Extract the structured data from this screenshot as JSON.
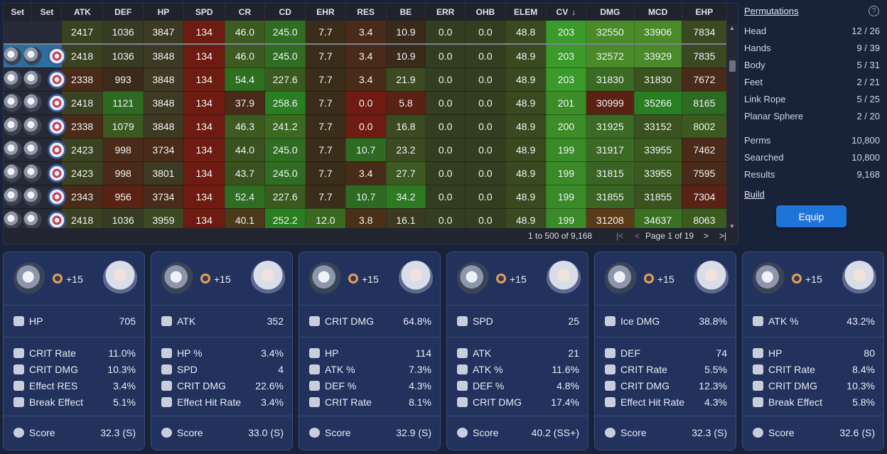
{
  "grid": {
    "columns": [
      "Set",
      "Set",
      "ATK",
      "DEF",
      "HP",
      "SPD",
      "CR",
      "CD",
      "EHR",
      "RES",
      "BE",
      "ERR",
      "OHB",
      "ELEM",
      "CV",
      "DMG",
      "MCD",
      "EHP"
    ],
    "sort_indicator": "↓",
    "rows": [
      [
        "2417",
        "1036",
        "3847",
        "134",
        "46.0",
        "245.0",
        "7.7",
        "3.4",
        "10.9",
        "0.0",
        "0.0",
        "48.8",
        "203",
        "32550",
        "33906",
        "7834"
      ],
      [
        "2418",
        "1036",
        "3848",
        "134",
        "46.0",
        "245.0",
        "7.7",
        "3.4",
        "10.9",
        "0.0",
        "0.0",
        "48.9",
        "203",
        "32572",
        "33929",
        "7835"
      ],
      [
        "2338",
        "993",
        "3848",
        "134",
        "54.4",
        "227.6",
        "7.7",
        "3.4",
        "21.9",
        "0.0",
        "0.0",
        "48.9",
        "203",
        "31830",
        "31830",
        "7672"
      ],
      [
        "2418",
        "1121",
        "3848",
        "134",
        "37.9",
        "258.6",
        "7.7",
        "0.0",
        "5.8",
        "0.0",
        "0.0",
        "48.9",
        "201",
        "30999",
        "35266",
        "8165"
      ],
      [
        "2338",
        "1079",
        "3848",
        "134",
        "46.3",
        "241.2",
        "7.7",
        "0.0",
        "16.8",
        "0.0",
        "0.0",
        "48.9",
        "200",
        "31925",
        "33152",
        "8002"
      ],
      [
        "2423",
        "998",
        "3734",
        "134",
        "44.0",
        "245.0",
        "7.7",
        "10.7",
        "23.2",
        "0.0",
        "0.0",
        "48.9",
        "199",
        "31917",
        "33955",
        "7462"
      ],
      [
        "2423",
        "998",
        "3801",
        "134",
        "43.7",
        "245.0",
        "7.7",
        "3.4",
        "27.7",
        "0.0",
        "0.0",
        "48.9",
        "199",
        "31815",
        "33955",
        "7595"
      ],
      [
        "2343",
        "956",
        "3734",
        "134",
        "52.4",
        "227.6",
        "7.7",
        "10.7",
        "34.2",
        "0.0",
        "0.0",
        "48.9",
        "199",
        "31855",
        "31855",
        "7304"
      ],
      [
        "2418",
        "1036",
        "3959",
        "134",
        "40.1",
        "252.2",
        "12.0",
        "3.8",
        "16.1",
        "0.0",
        "0.0",
        "48.9",
        "199",
        "31208",
        "34637",
        "8063"
      ]
    ],
    "colors": [
      [
        "#3b4221",
        "#363b22",
        "#3c3a22",
        "#6e1c11",
        "#3d5a20",
        "#2f6e22",
        "#3a2e1a",
        "#4a2a19",
        "#3a2a1a",
        "#323e20",
        "#323e20",
        "#3a4a20",
        "#3a9a2a",
        "#4a8a28",
        "#4a8a28",
        "#3a4a20"
      ],
      [
        "#3b4221",
        "#363b22",
        "#3c3a22",
        "#6e1c11",
        "#3d5a20",
        "#2f6e22",
        "#3a2e1a",
        "#4a2a19",
        "#3a2a1a",
        "#323e20",
        "#323e20",
        "#3a4a20",
        "#3a9a2a",
        "#4a8a28",
        "#4a8a28",
        "#3a4a20"
      ],
      [
        "#4a2a18",
        "#3c2a1a",
        "#3c3a22",
        "#6e1c11",
        "#2e7020",
        "#3a5a20",
        "#3a2e1a",
        "#4a2a19",
        "#3c4a22",
        "#323e20",
        "#323e20",
        "#3a4a20",
        "#3a9a2a",
        "#3a6a24",
        "#3a5220",
        "#4a2a18"
      ],
      [
        "#3b4221",
        "#2f6a22",
        "#3c3a22",
        "#6e1c11",
        "#4a2a18",
        "#2a7e22",
        "#3a2e1a",
        "#6e1c11",
        "#5a2214",
        "#323e20",
        "#323e20",
        "#3a4a20",
        "#3c8c28",
        "#5a2214",
        "#2a7e22",
        "#2f6a22"
      ],
      [
        "#4a2a18",
        "#3a5a20",
        "#3c3a22",
        "#6e1c11",
        "#3d5a20",
        "#3c6a22",
        "#3a2e1a",
        "#6e1c11",
        "#3c4a22",
        "#323e20",
        "#323e20",
        "#3a4a20",
        "#3c8c28",
        "#3a6a24",
        "#3a5220",
        "#3a5a20"
      ],
      [
        "#3b4221",
        "#4a2a18",
        "#4a2a18",
        "#6e1c11",
        "#3a5220",
        "#2f6e22",
        "#3a2e1a",
        "#2e6a22",
        "#3c4a22",
        "#323e20",
        "#323e20",
        "#3a4a20",
        "#3a8a28",
        "#3a6a24",
        "#3a5a20",
        "#4a2a18"
      ],
      [
        "#3b4221",
        "#4a2a18",
        "#3c3a22",
        "#6e1c11",
        "#3a5220",
        "#2f6e22",
        "#3a2e1a",
        "#4a2a19",
        "#3c5a22",
        "#323e20",
        "#323e20",
        "#3a4a20",
        "#3a8a28",
        "#3a6424",
        "#3a5a20",
        "#4a2a18"
      ],
      [
        "#4a2a18",
        "#5a2214",
        "#4a2a18",
        "#6e1c11",
        "#2e6e22",
        "#3a5a20",
        "#3a2e1a",
        "#2e6a22",
        "#2e7a22",
        "#323e20",
        "#323e20",
        "#3a4a20",
        "#3a8a28",
        "#3a6424",
        "#3a5220",
        "#5a2214"
      ],
      [
        "#3b4221",
        "#363b22",
        "#3c4a22",
        "#6e1c11",
        "#4a3a1a",
        "#2a7e22",
        "#3a6a22",
        "#4a3019",
        "#3a3a20",
        "#323e20",
        "#323e20",
        "#3a4a20",
        "#3a8a28",
        "#5a3a18",
        "#3a7022",
        "#3a5a20"
      ]
    ],
    "footer": {
      "range": "1 to 500 of 9,168",
      "page": "Page 1 of 19",
      "first_icon": "|<",
      "prev_icon": "<",
      "next_icon": ">",
      "last_icon": ">|"
    }
  },
  "sidebar": {
    "title": "Permutations",
    "help_icon": "?",
    "slots": [
      {
        "label": "Head",
        "value": "12 / 26"
      },
      {
        "label": "Hands",
        "value": "9 / 39"
      },
      {
        "label": "Body",
        "value": "5 / 31"
      },
      {
        "label": "Feet",
        "value": "2 / 21"
      },
      {
        "label": "Link Rope",
        "value": "5 / 25"
      },
      {
        "label": "Planar Sphere",
        "value": "2 / 20"
      }
    ],
    "stats": [
      {
        "label": "Perms",
        "value": "10,800"
      },
      {
        "label": "Searched",
        "value": "10,800"
      },
      {
        "label": "Results",
        "value": "9,168"
      }
    ],
    "build_label": "Build",
    "equip_label": "Equip"
  },
  "cards": [
    {
      "level": "+15",
      "main": {
        "name": "HP",
        "value": "705"
      },
      "subs": [
        {
          "name": "CRIT Rate",
          "value": "11.0%"
        },
        {
          "name": "CRIT DMG",
          "value": "10.3%"
        },
        {
          "name": "Effect RES",
          "value": "3.4%"
        },
        {
          "name": "Break Effect",
          "value": "5.1%"
        }
      ],
      "score_label": "Score",
      "score": "32.3 (S)"
    },
    {
      "level": "+15",
      "main": {
        "name": "ATK",
        "value": "352"
      },
      "subs": [
        {
          "name": "HP %",
          "value": "3.4%"
        },
        {
          "name": "SPD",
          "value": "4"
        },
        {
          "name": "CRIT DMG",
          "value": "22.6%"
        },
        {
          "name": "Effect Hit Rate",
          "value": "3.4%"
        }
      ],
      "score_label": "Score",
      "score": "33.0 (S)"
    },
    {
      "level": "+15",
      "main": {
        "name": "CRIT DMG",
        "value": "64.8%"
      },
      "subs": [
        {
          "name": "HP",
          "value": "114"
        },
        {
          "name": "ATK %",
          "value": "7.3%"
        },
        {
          "name": "DEF %",
          "value": "4.3%"
        },
        {
          "name": "CRIT Rate",
          "value": "8.1%"
        }
      ],
      "score_label": "Score",
      "score": "32.9 (S)"
    },
    {
      "level": "+15",
      "main": {
        "name": "SPD",
        "value": "25"
      },
      "subs": [
        {
          "name": "ATK",
          "value": "21"
        },
        {
          "name": "ATK %",
          "value": "11.6%"
        },
        {
          "name": "DEF %",
          "value": "4.8%"
        },
        {
          "name": "CRIT DMG",
          "value": "17.4%"
        }
      ],
      "score_label": "Score",
      "score": "40.2 (SS+)"
    },
    {
      "level": "+15",
      "main": {
        "name": "Ice DMG",
        "value": "38.8%"
      },
      "subs": [
        {
          "name": "DEF",
          "value": "74"
        },
        {
          "name": "CRIT Rate",
          "value": "5.5%"
        },
        {
          "name": "CRIT DMG",
          "value": "12.3%"
        },
        {
          "name": "Effect Hit Rate",
          "value": "4.3%"
        }
      ],
      "score_label": "Score",
      "score": "32.3 (S)"
    },
    {
      "level": "+15",
      "main": {
        "name": "ATK %",
        "value": "43.2%"
      },
      "subs": [
        {
          "name": "HP",
          "value": "80"
        },
        {
          "name": "CRIT Rate",
          "value": "8.4%"
        },
        {
          "name": "CRIT DMG",
          "value": "10.3%"
        },
        {
          "name": "Break Effect",
          "value": "5.8%"
        }
      ],
      "score_label": "Score",
      "score": "32.6 (S)"
    }
  ]
}
